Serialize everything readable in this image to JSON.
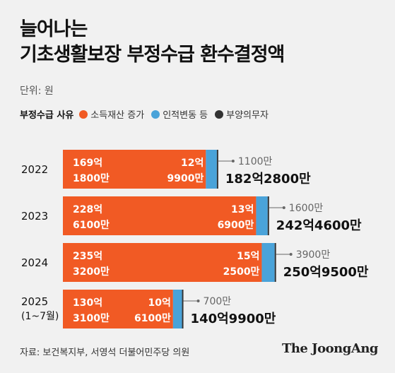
{
  "title_line1": "늘어나는",
  "title_line2": "기초생활보장 부정수급 환수결정액",
  "unit": "단위: 원",
  "legend": {
    "title": "부정수급 사유",
    "items": [
      {
        "label": "소득재산 증가",
        "color": "#f15a24"
      },
      {
        "label": "인적변동 등",
        "color": "#4aa3d9"
      },
      {
        "label": "부양의무자",
        "color": "#333333"
      }
    ]
  },
  "source": "자료: 보건복지부, 서영석 더불어민주당 의원",
  "brand": "The JoongAng",
  "chart_data": {
    "type": "bar",
    "orientation": "horizontal",
    "stacked": true,
    "unit": "원",
    "categories": [
      "2022",
      "2023",
      "2024",
      "2025"
    ],
    "category_sublabels": [
      "",
      "",
      "",
      "(1~7월)"
    ],
    "series": [
      {
        "name": "소득재산 증가",
        "color": "#f15a24",
        "values": [
          16918000000,
          22861000000,
          23532000000,
          13031000000
        ],
        "labels": [
          [
            "169억",
            "1800만"
          ],
          [
            "228억",
            "6100만"
          ],
          [
            "235억",
            "3200만"
          ],
          [
            "130억",
            "3100만"
          ]
        ]
      },
      {
        "name": "인적변동 등",
        "color": "#4aa3d9",
        "values": [
          1299000000,
          1369000000,
          1525000000,
          1061000000
        ],
        "labels": [
          [
            "12억",
            "9900만"
          ],
          [
            "13억",
            "6900만"
          ],
          [
            "15억",
            "2500만"
          ],
          [
            "10억",
            "6100만"
          ]
        ]
      },
      {
        "name": "부양의무자",
        "color": "#333333",
        "values": [
          11000000,
          16000000,
          39000000,
          7000000
        ],
        "labels": [
          "1100만",
          "1600만",
          "3900만",
          "700만"
        ]
      }
    ],
    "totals": [
      "182억2800만",
      "242억4600만",
      "250억9500만",
      "140억9900만"
    ],
    "total_values": [
      18228000000,
      24246000000,
      25095000000,
      14099000000
    ]
  }
}
